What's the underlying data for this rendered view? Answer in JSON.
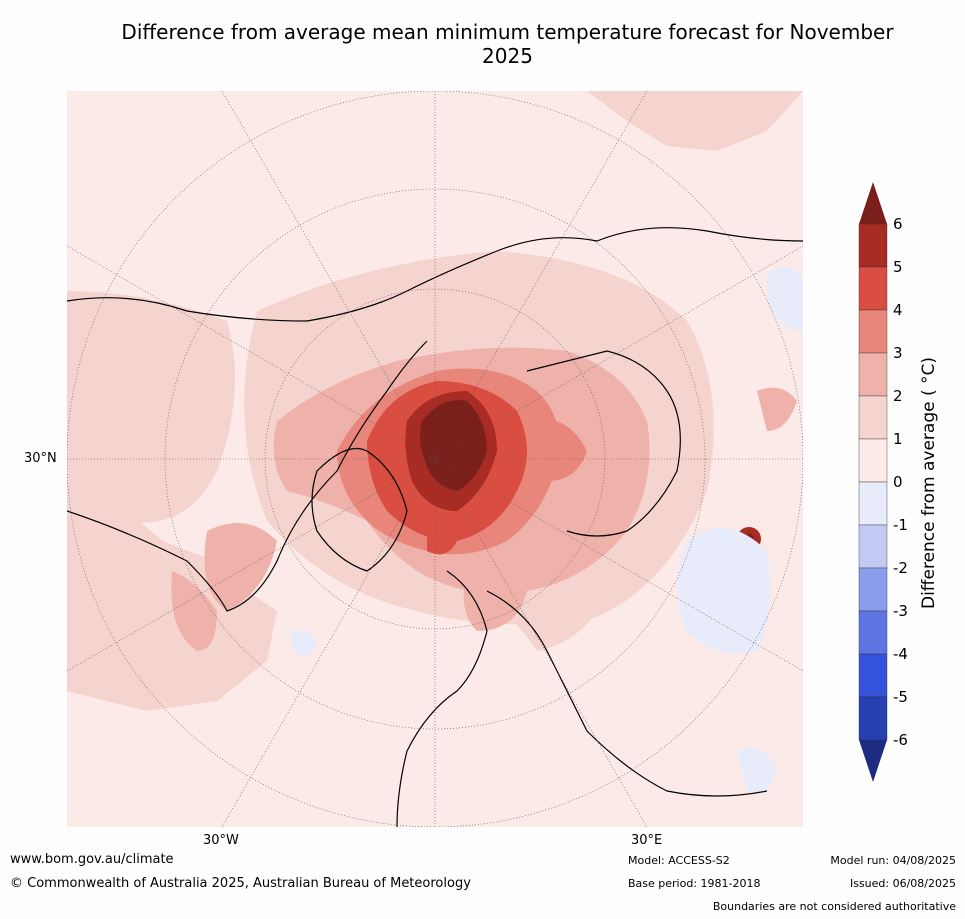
{
  "title": "Difference from average mean minimum temperature forecast for November 2025",
  "map": {
    "projection": "north-polar-stereographic",
    "lat_labels": [
      "30°N"
    ],
    "lon_labels": [
      "30°W",
      "30°E"
    ]
  },
  "colorbar": {
    "label": "Difference from average ( °C)",
    "ticks": [
      "6",
      "5",
      "4",
      "3",
      "2",
      "1",
      "0",
      "-1",
      "-2",
      "-3",
      "-4",
      "-5",
      "-6"
    ],
    "colors_warm_to_cold": [
      "#a82b24",
      "#d94e40",
      "#e8867c",
      "#efb2ab",
      "#f5d4d0",
      "#fbeae7",
      "#e7ebfa",
      "#c2caf3",
      "#8a9cec",
      "#5d74e3",
      "#3552dc",
      "#2640b1"
    ],
    "extend_top_color": "#7a1f1a",
    "extend_bottom_color": "#1d2c80"
  },
  "footer": {
    "url": "www.bom.gov.au/climate",
    "copyright": "© Commonwealth of Australia 2025, Australian Bureau of Meteorology",
    "model": "Model: ACCESS-S2",
    "base_period": "Base period: 1981-2018",
    "model_run": "Model run: 04/08/2025",
    "issued": "Issued: 06/08/2025",
    "disclaimer": "Boundaries are not considered authoritative"
  }
}
